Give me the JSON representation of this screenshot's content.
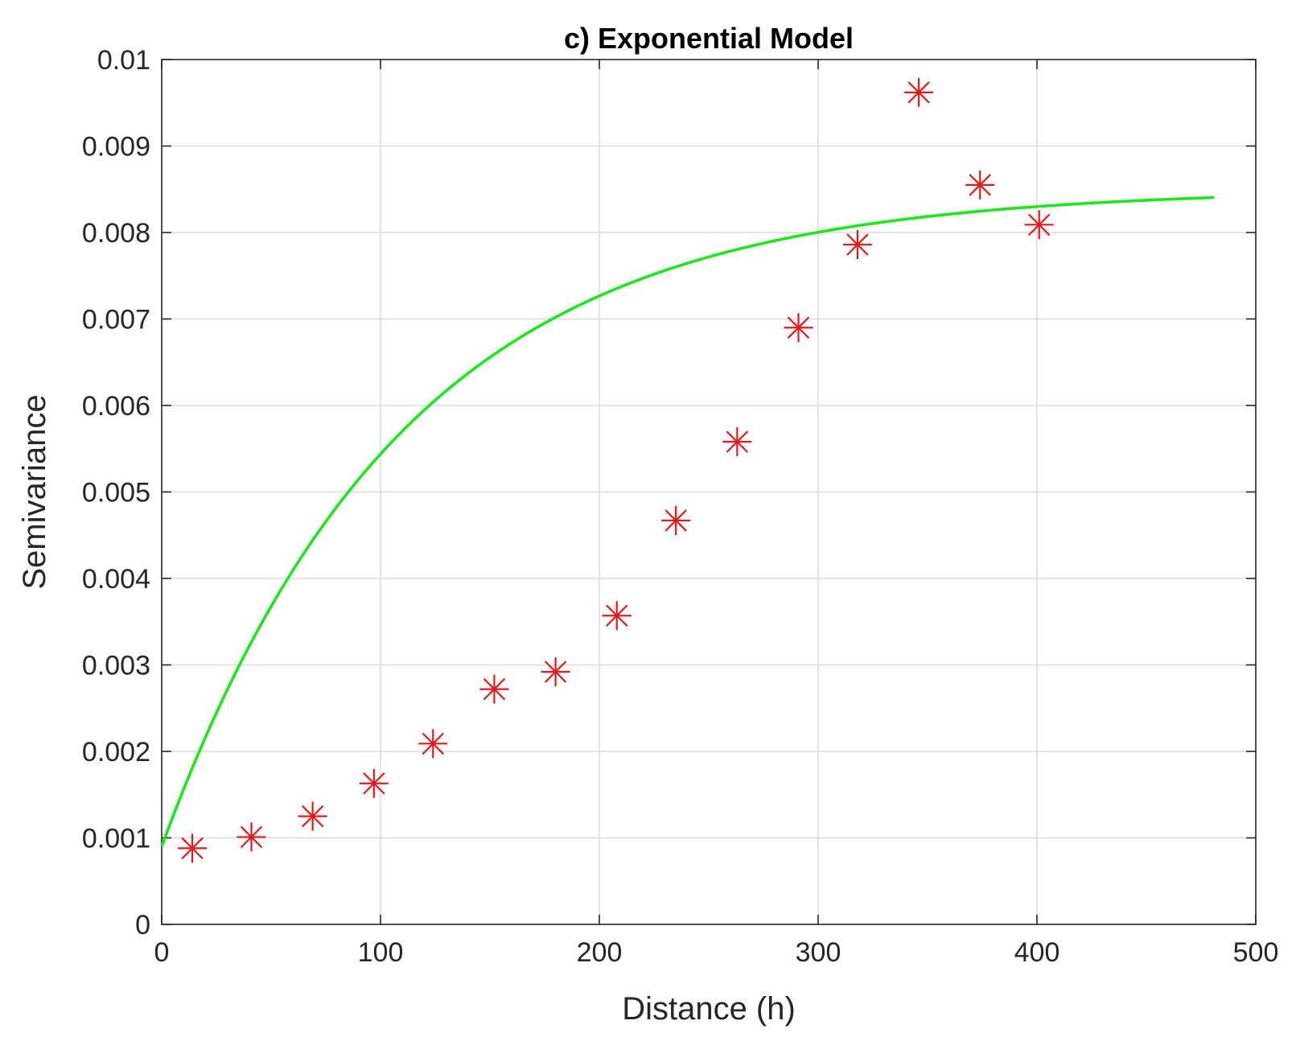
{
  "chart_data": {
    "type": "scatter",
    "title": "c) Exponential Model",
    "xlabel": "Distance (h)",
    "ylabel": "Semivariance",
    "xlim": [
      0,
      500
    ],
    "ylim": [
      0,
      0.01
    ],
    "xticks": [
      0,
      100,
      200,
      300,
      400,
      500
    ],
    "xtick_labels": [
      "0",
      "100",
      "200",
      "300",
      "400",
      "500"
    ],
    "yticks": [
      0,
      0.001,
      0.002,
      0.003,
      0.004,
      0.005,
      0.006,
      0.007,
      0.008,
      0.009,
      0.01
    ],
    "ytick_labels": [
      "0",
      "0.001",
      "0.002",
      "0.003",
      "0.004",
      "0.005",
      "0.006",
      "0.007",
      "0.008",
      "0.009",
      "0.01"
    ],
    "grid": true,
    "series": [
      {
        "type": "scatter",
        "marker": "asterisk",
        "color": "#e6191a",
        "x": [
          14,
          41,
          69,
          97,
          124,
          152,
          180,
          208,
          235,
          263,
          291,
          318,
          346,
          374,
          401
        ],
        "y": [
          0.00088,
          0.00101,
          0.00125,
          0.00163,
          0.00209,
          0.00272,
          0.00292,
          0.00357,
          0.00467,
          0.00558,
          0.0069,
          0.00786,
          0.00962,
          0.00855,
          0.00809
        ]
      },
      {
        "type": "line",
        "color": "#1ee61e",
        "model": "exponential",
        "nugget": 0.0009,
        "sill": 0.0085,
        "range": 110,
        "x_start": 0,
        "x_end": 481
      }
    ]
  }
}
